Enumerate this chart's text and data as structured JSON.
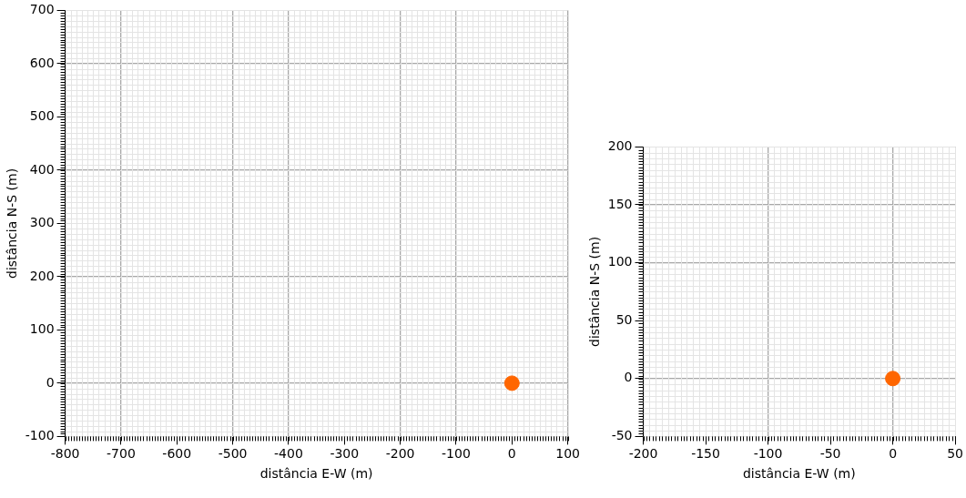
{
  "chart_data": [
    {
      "type": "scatter",
      "xlabel": "distância E-W (m)",
      "ylabel": "distância N-S (m)",
      "series": [
        {
          "color": "#ff6600",
          "x": [
            0
          ],
          "values": [
            0
          ]
        }
      ],
      "marker": "circle",
      "xlim": [
        -800,
        100
      ],
      "xticks": [
        -800,
        -700,
        -600,
        -500,
        -400,
        -300,
        -200,
        -100,
        0,
        100
      ],
      "ylim": [
        -100,
        700
      ],
      "yticks": [
        -100,
        0,
        100,
        200,
        300,
        400,
        500,
        600,
        700
      ],
      "grid": true,
      "legend": false
    },
    {
      "type": "scatter",
      "xlabel": "distância E-W (m)",
      "ylabel": "distância N-S (m)",
      "series": [
        {
          "color": "#ff6600",
          "x": [
            0
          ],
          "values": [
            0
          ]
        }
      ],
      "marker": "circle",
      "xlim": [
        -200,
        50
      ],
      "xticks": [
        -200,
        -150,
        -100,
        -50,
        0,
        50
      ],
      "ylim": [
        -50,
        200
      ],
      "yticks": [
        -50,
        0,
        50,
        100,
        150,
        200
      ],
      "grid": true,
      "legend": false
    }
  ]
}
